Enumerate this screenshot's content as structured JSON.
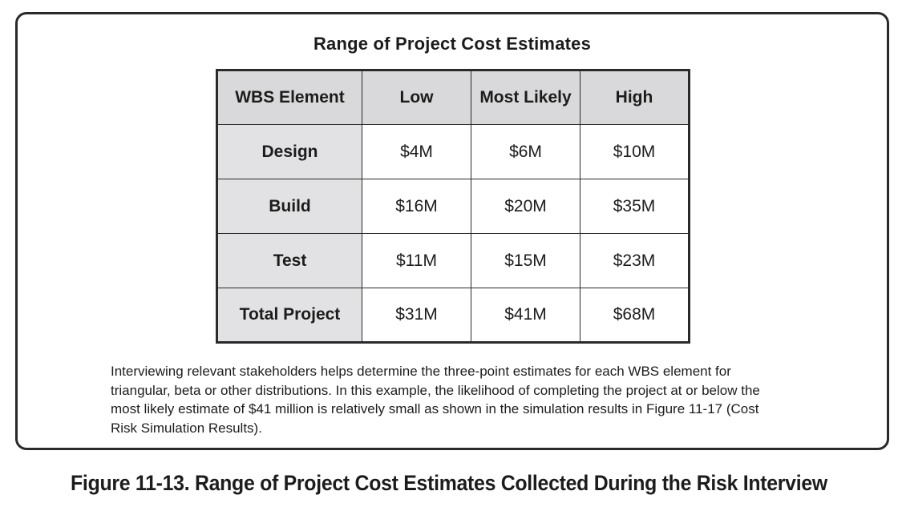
{
  "box": {
    "title": "Range of Project Cost Estimates"
  },
  "table": {
    "headers": [
      "WBS Element",
      "Low",
      "Most Likely",
      "High"
    ],
    "rows": [
      {
        "label": "Design",
        "low": "$4M",
        "most_likely": "$6M",
        "high": "$10M"
      },
      {
        "label": "Build",
        "low": "$16M",
        "most_likely": "$20M",
        "high": "$35M"
      },
      {
        "label": "Test",
        "low": "$11M",
        "most_likely": "$15M",
        "high": "$23M"
      },
      {
        "label": "Total Project",
        "low": "$31M",
        "most_likely": "$41M",
        "high": "$68M"
      }
    ]
  },
  "body_text": "Interviewing relevant stakeholders helps determine the three-point estimates for each WBS element for triangular, beta or other distributions. In this example, the likelihood of completing the project at or below the most likely estimate of $41 million is relatively small as shown in the simulation results in Figure 11-17 (Cost Risk Simulation Results).",
  "figure_caption": "Figure 11-13. Range of Project Cost Estimates Collected During the Risk Interview"
}
